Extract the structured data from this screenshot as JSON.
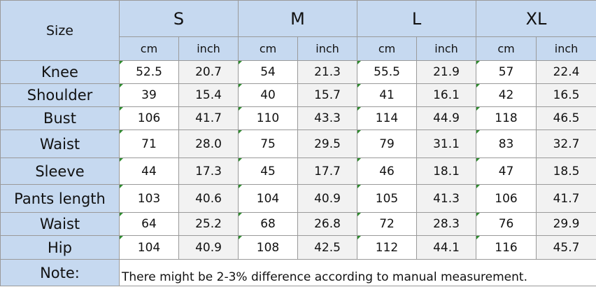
{
  "header": {
    "size_label": "Size",
    "sizes": [
      "S",
      "M",
      "L",
      "XL"
    ],
    "units": [
      "cm",
      "inch"
    ]
  },
  "rows": [
    {
      "label": "Knee",
      "values": [
        "52.5",
        "20.7",
        "54",
        "21.3",
        "55.5",
        "21.9",
        "57",
        "22.4"
      ]
    },
    {
      "label": "Shoulder",
      "values": [
        "39",
        "15.4",
        "40",
        "15.7",
        "41",
        "16.1",
        "42",
        "16.5"
      ]
    },
    {
      "label": "Bust",
      "values": [
        "106",
        "41.7",
        "110",
        "43.3",
        "114",
        "44.9",
        "118",
        "46.5"
      ]
    },
    {
      "label": "Waist",
      "values": [
        "71",
        "28.0",
        "75",
        "29.5",
        "79",
        "31.1",
        "83",
        "32.7"
      ]
    },
    {
      "label": "Sleeve",
      "values": [
        "44",
        "17.3",
        "45",
        "17.7",
        "46",
        "18.1",
        "47",
        "18.5"
      ]
    },
    {
      "label": "Pants length",
      "values": [
        "103",
        "40.6",
        "104",
        "40.9",
        "105",
        "41.3",
        "106",
        "41.7"
      ]
    },
    {
      "label": "Waist",
      "values": [
        "64",
        "25.2",
        "68",
        "26.8",
        "72",
        "28.3",
        "76",
        "29.9"
      ]
    },
    {
      "label": "Hip",
      "values": [
        "104",
        "40.9",
        "108",
        "42.5",
        "112",
        "44.1",
        "116",
        "45.7"
      ]
    }
  ],
  "note": {
    "label": "Note:",
    "text": "There might be 2-3% difference according to manual measurement."
  }
}
